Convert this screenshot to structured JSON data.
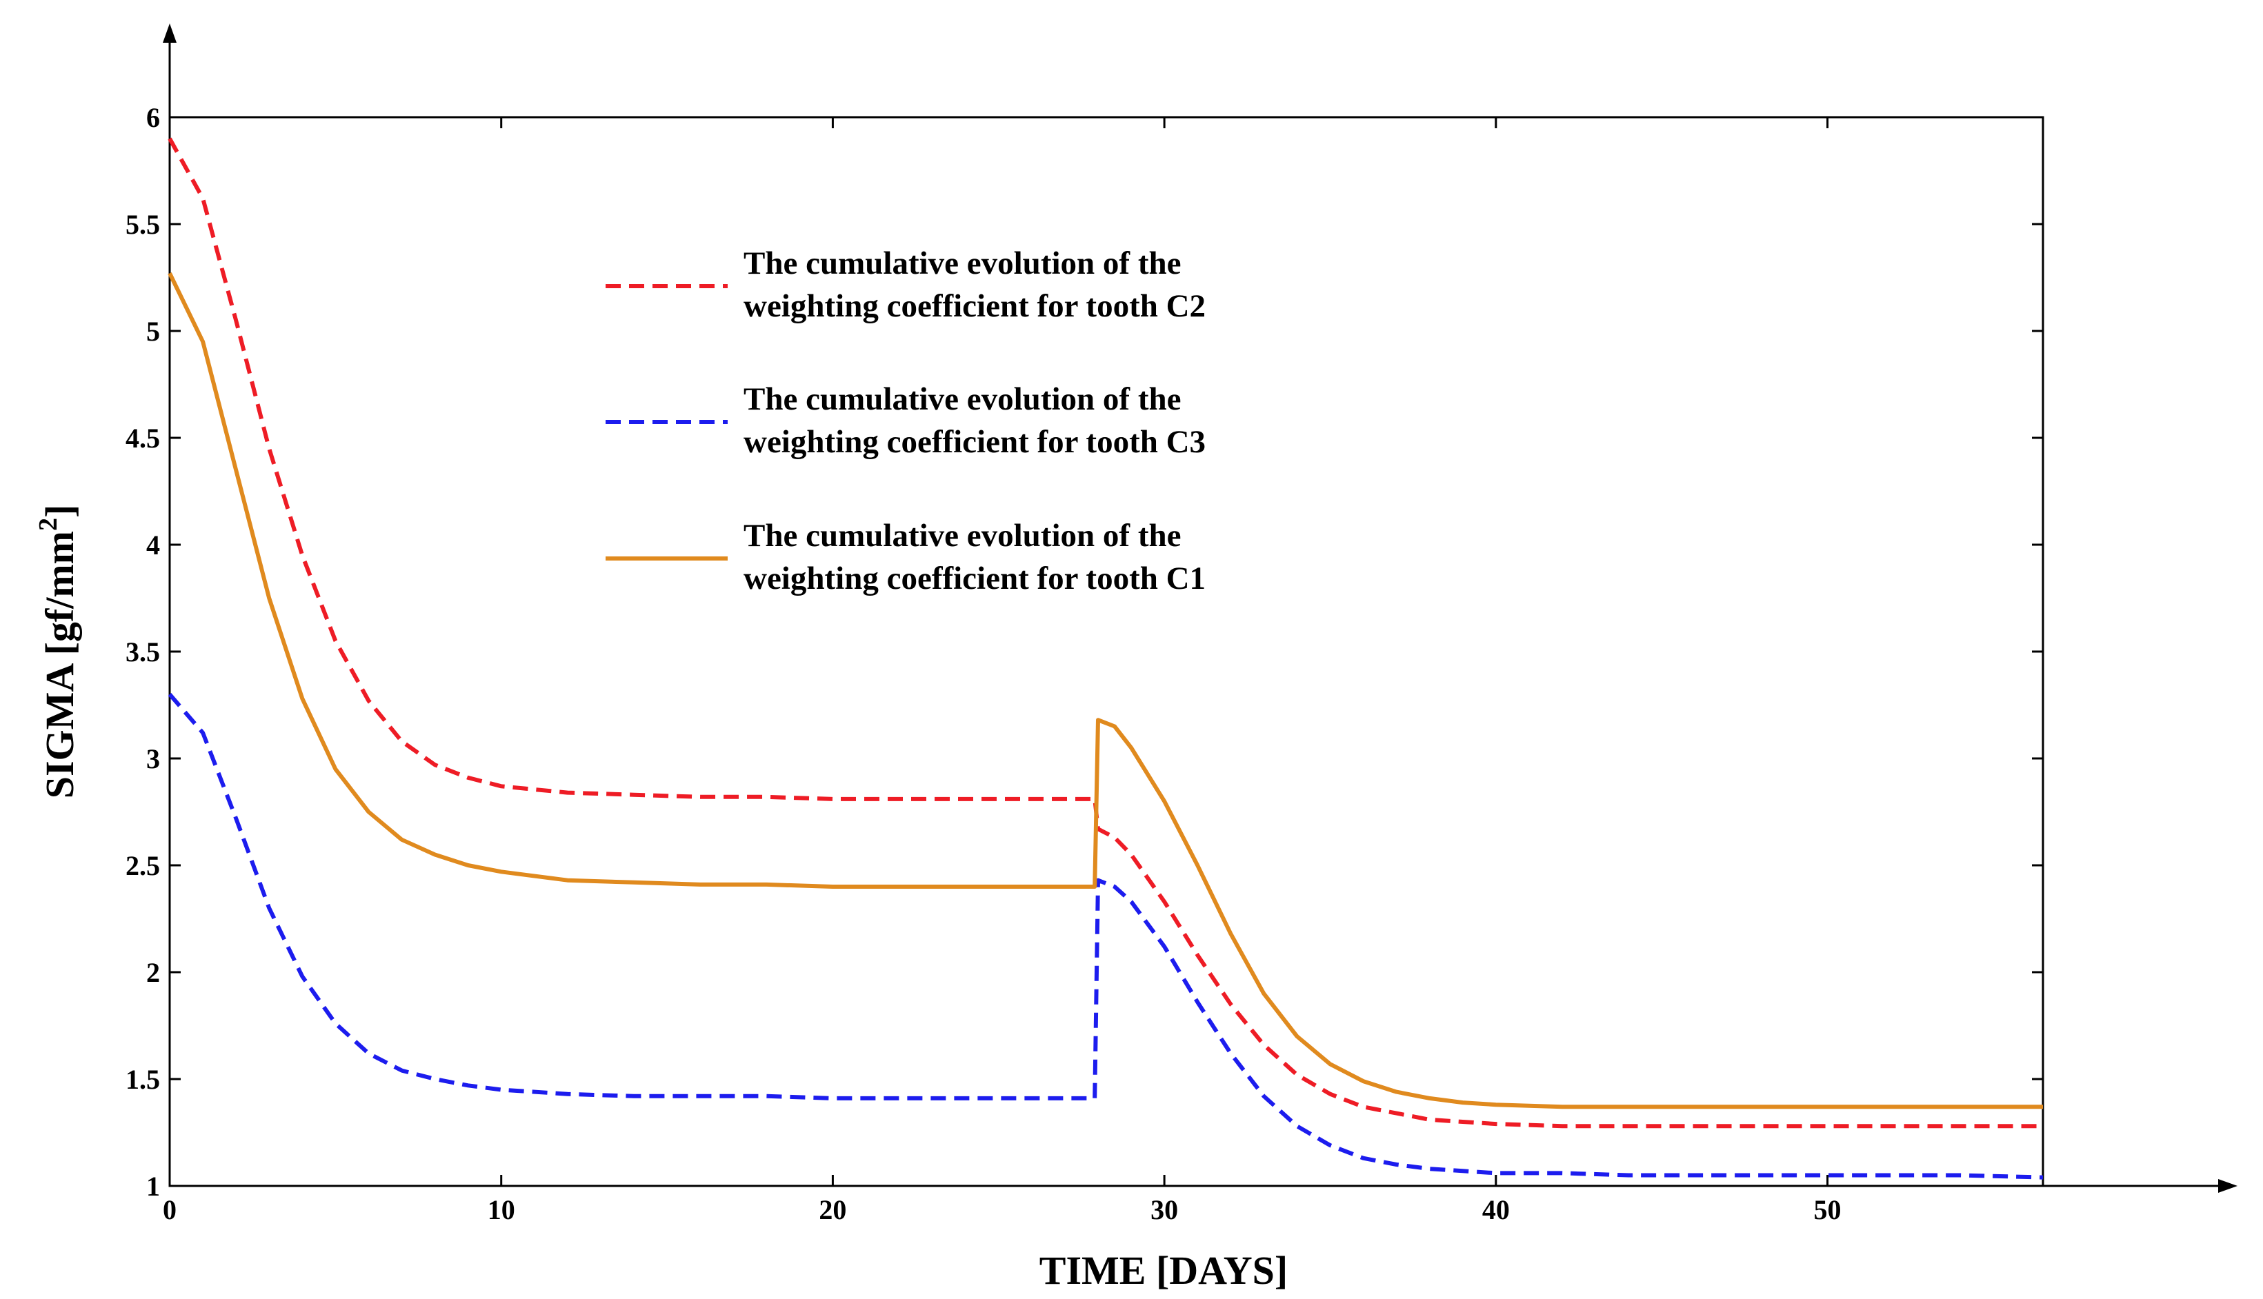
{
  "chart_data": {
    "type": "line",
    "title": "",
    "xlabel": "TIME [DAYS]",
    "ylabel_main": "SIGMA [gf/mm",
    "ylabel_sup": "2",
    "ylabel_close": "]",
    "xlim": [
      0,
      56.5
    ],
    "ylim": [
      1,
      6
    ],
    "xticks": [
      0,
      10,
      20,
      30,
      40,
      50
    ],
    "yticks": [
      1,
      1.5,
      2,
      2.5,
      3,
      3.5,
      4,
      4.5,
      5,
      5.5,
      6
    ],
    "ytick_labels": [
      "1",
      "1.5",
      "2",
      "2.5",
      "3",
      "3.5",
      "4",
      "4.5",
      "5",
      "5.5",
      "6"
    ],
    "grid": false,
    "legend_position": "top-center",
    "series": [
      {
        "key": "c2",
        "legend_line1": "The cumulative evolution of the",
        "legend_line2": "weighting coefficient for tooth C2",
        "color": "#ee1c25",
        "dash": "dashed",
        "x": [
          0,
          1,
          2,
          3,
          4,
          5,
          6,
          7,
          8,
          9,
          10,
          12,
          14,
          16,
          18,
          20,
          22,
          24,
          26,
          27.9,
          28.0,
          28.5,
          29,
          30,
          31,
          32,
          33,
          34,
          35,
          36,
          37,
          38,
          39,
          40,
          42,
          44,
          46,
          48,
          50,
          52,
          54,
          56.5
        ],
        "y": [
          5.9,
          5.62,
          5.05,
          4.45,
          3.95,
          3.55,
          3.27,
          3.08,
          2.97,
          2.91,
          2.87,
          2.84,
          2.83,
          2.82,
          2.82,
          2.81,
          2.81,
          2.81,
          2.81,
          2.81,
          2.67,
          2.63,
          2.55,
          2.33,
          2.08,
          1.85,
          1.66,
          1.52,
          1.43,
          1.37,
          1.34,
          1.31,
          1.3,
          1.29,
          1.28,
          1.28,
          1.28,
          1.28,
          1.28,
          1.28,
          1.28,
          1.28
        ]
      },
      {
        "key": "c3",
        "legend_line1": "The cumulative evolution of the",
        "legend_line2": "weighting coefficient for tooth C3",
        "color": "#1c1cee",
        "dash": "dashed",
        "x": [
          0,
          1,
          2,
          3,
          4,
          5,
          6,
          7,
          8,
          9,
          10,
          12,
          14,
          16,
          18,
          20,
          22,
          24,
          26,
          27.9,
          28.0,
          28.5,
          29,
          30,
          31,
          32,
          33,
          34,
          35,
          36,
          37,
          38,
          39,
          40,
          42,
          44,
          46,
          48,
          50,
          52,
          54,
          56.5
        ],
        "y": [
          3.3,
          3.12,
          2.72,
          2.3,
          1.98,
          1.76,
          1.62,
          1.54,
          1.5,
          1.47,
          1.45,
          1.43,
          1.42,
          1.42,
          1.42,
          1.41,
          1.41,
          1.41,
          1.41,
          1.41,
          2.43,
          2.4,
          2.33,
          2.12,
          1.86,
          1.62,
          1.42,
          1.28,
          1.19,
          1.13,
          1.1,
          1.08,
          1.07,
          1.06,
          1.06,
          1.05,
          1.05,
          1.05,
          1.05,
          1.05,
          1.05,
          1.04
        ]
      },
      {
        "key": "c1",
        "legend_line1": "The cumulative evolution of the",
        "legend_line2": "weighting coefficient for tooth C1",
        "color": "#e08a1e",
        "dash": "solid",
        "x": [
          0,
          1,
          2,
          3,
          4,
          5,
          6,
          7,
          8,
          9,
          10,
          12,
          14,
          16,
          18,
          20,
          22,
          24,
          26,
          27.9,
          28.0,
          28.5,
          29,
          30,
          31,
          32,
          33,
          34,
          35,
          36,
          37,
          38,
          39,
          40,
          42,
          44,
          46,
          48,
          50,
          52,
          54,
          56.5
        ],
        "y": [
          5.27,
          4.95,
          4.35,
          3.75,
          3.28,
          2.95,
          2.75,
          2.62,
          2.55,
          2.5,
          2.47,
          2.43,
          2.42,
          2.41,
          2.41,
          2.4,
          2.4,
          2.4,
          2.4,
          2.4,
          3.18,
          3.15,
          3.05,
          2.8,
          2.5,
          2.18,
          1.9,
          1.7,
          1.57,
          1.49,
          1.44,
          1.41,
          1.39,
          1.38,
          1.37,
          1.37,
          1.37,
          1.37,
          1.37,
          1.37,
          1.37,
          1.37
        ]
      }
    ]
  }
}
